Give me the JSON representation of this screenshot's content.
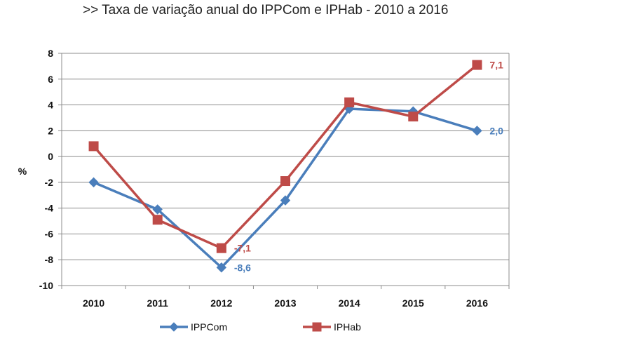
{
  "page": {
    "title": ">>  Taxa de variação anual do IPPCom e IPHab - 2010 a 2016"
  },
  "chart_data": {
    "type": "line",
    "title": ">>  Taxa de variação anual do IPPCom e IPHab - 2010 a 2016",
    "xlabel": "",
    "ylabel": "%",
    "categories": [
      "2010",
      "2011",
      "2012",
      "2013",
      "2014",
      "2015",
      "2016"
    ],
    "ylim": [
      -10,
      8
    ],
    "yticks": [
      8,
      6,
      4,
      2,
      0,
      -2,
      -4,
      -6,
      -8,
      -10
    ],
    "grid": true,
    "legend_position": "bottom",
    "series": [
      {
        "name": "IPPCom",
        "color": "#4a7ebb",
        "marker": "diamond",
        "values": [
          -2.0,
          -4.1,
          -8.6,
          -3.4,
          3.7,
          3.5,
          2.0
        ],
        "data_labels": [
          {
            "index": 2,
            "text": "-8,6"
          },
          {
            "index": 6,
            "text": "2,0"
          }
        ]
      },
      {
        "name": "IPHab",
        "color": "#be4b48",
        "marker": "square",
        "values": [
          0.8,
          -4.9,
          -7.1,
          -1.9,
          4.2,
          3.1,
          7.1
        ],
        "data_labels": [
          {
            "index": 2,
            "text": "-7,1"
          },
          {
            "index": 6,
            "text": "7,1"
          }
        ]
      }
    ]
  }
}
